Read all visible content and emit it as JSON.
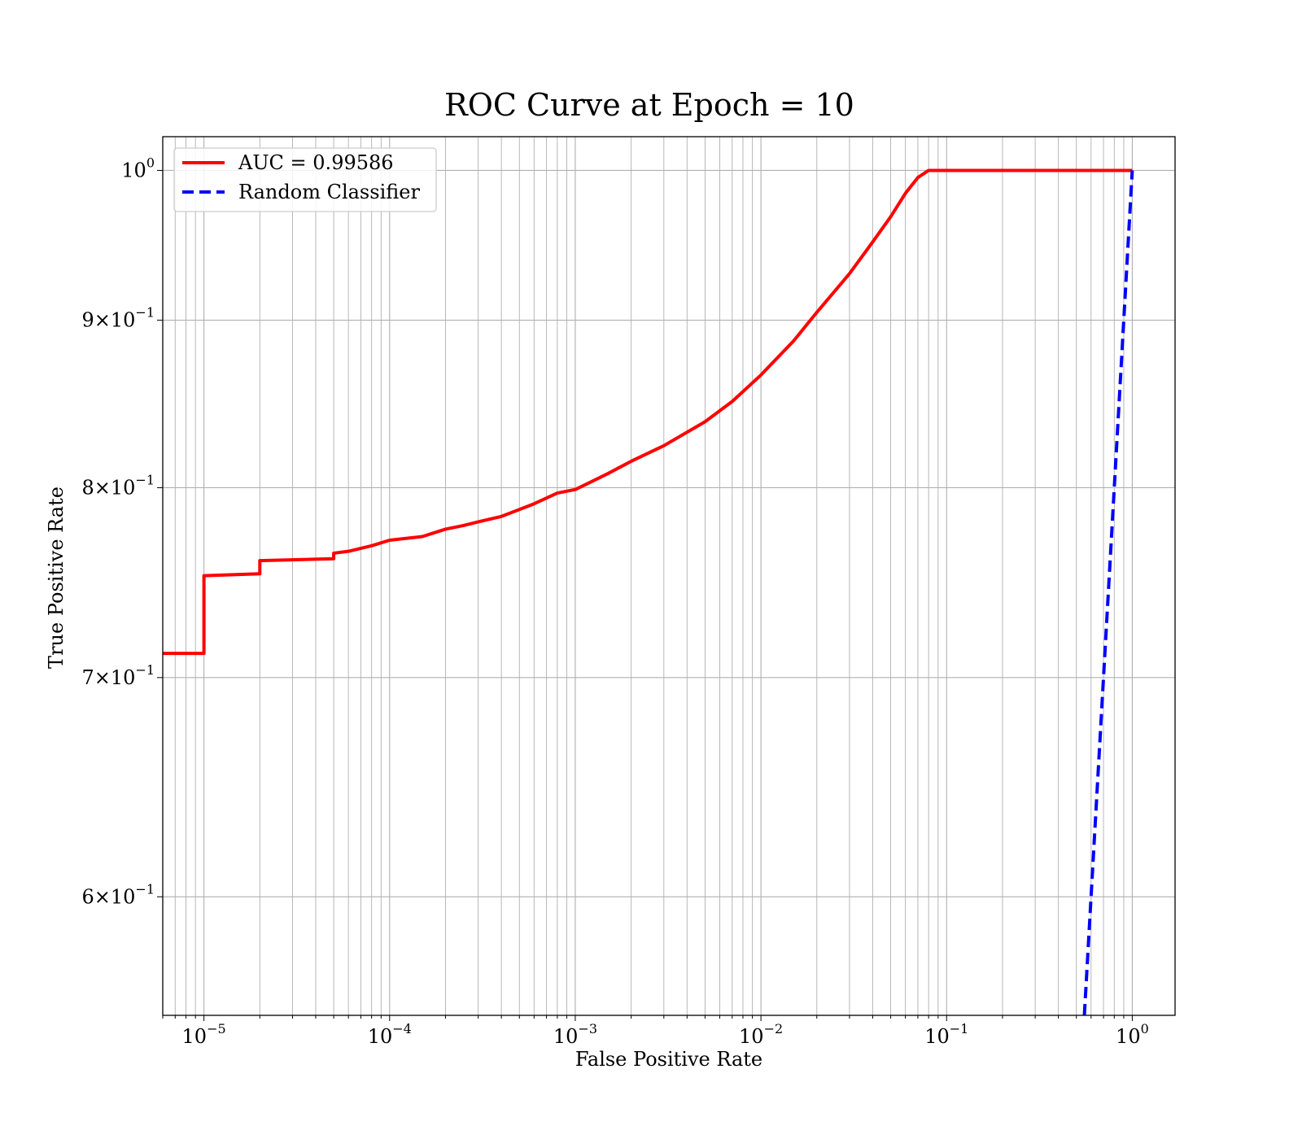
{
  "chart_data": {
    "type": "line",
    "title": "ROC Curve at Epoch = 10",
    "xlabel": "False Positive Rate",
    "ylabel": "True Positive Rate",
    "xscale": "log",
    "yscale": "log",
    "xlim": [
      6e-06,
      1.7
    ],
    "ylim": [
      0.552,
      1.024
    ],
    "grid": true,
    "grid_minor": true,
    "legend_position": "upper-left",
    "x_ticks": [
      {
        "value": 1e-05,
        "base": "10",
        "exp": "−5"
      },
      {
        "value": 0.0001,
        "base": "10",
        "exp": "−4"
      },
      {
        "value": 0.001,
        "base": "10",
        "exp": "−3"
      },
      {
        "value": 0.01,
        "base": "10",
        "exp": "−2"
      },
      {
        "value": 0.1,
        "base": "10",
        "exp": "−1"
      },
      {
        "value": 1,
        "base": "10",
        "exp": "0"
      }
    ],
    "y_ticks": [
      {
        "value": 1.0,
        "base": "10",
        "exp": "0"
      },
      {
        "value": 0.9,
        "base": "9×10",
        "exp": "−1"
      },
      {
        "value": 0.8,
        "base": "8×10",
        "exp": "−1"
      },
      {
        "value": 0.7,
        "base": "7×10",
        "exp": "−1"
      },
      {
        "value": 0.6,
        "base": "6×10",
        "exp": "−1"
      }
    ],
    "series": [
      {
        "name": "AUC = 0.99586",
        "color": "#ff0000",
        "style": "solid",
        "points": [
          [
            6e-06,
            0.712
          ],
          [
            1e-05,
            0.712
          ],
          [
            1e-05,
            0.752
          ],
          [
            2e-05,
            0.753
          ],
          [
            2e-05,
            0.76
          ],
          [
            5e-05,
            0.761
          ],
          [
            5e-05,
            0.764
          ],
          [
            6e-05,
            0.765
          ],
          [
            8e-05,
            0.768
          ],
          [
            0.0001,
            0.771
          ],
          [
            0.00015,
            0.773
          ],
          [
            0.0002,
            0.777
          ],
          [
            0.00025,
            0.779
          ],
          [
            0.0003,
            0.781
          ],
          [
            0.0004,
            0.784
          ],
          [
            0.0006,
            0.791
          ],
          [
            0.0008,
            0.797
          ],
          [
            0.001,
            0.799
          ],
          [
            0.0012,
            0.803
          ],
          [
            0.0015,
            0.808
          ],
          [
            0.002,
            0.815
          ],
          [
            0.003,
            0.824
          ],
          [
            0.005,
            0.838
          ],
          [
            0.007,
            0.85
          ],
          [
            0.01,
            0.866
          ],
          [
            0.015,
            0.887
          ],
          [
            0.02,
            0.905
          ],
          [
            0.03,
            0.93
          ],
          [
            0.04,
            0.951
          ],
          [
            0.05,
            0.968
          ],
          [
            0.06,
            0.984
          ],
          [
            0.07,
            0.995
          ],
          [
            0.08,
            1.0
          ],
          [
            1,
            1.0
          ]
        ]
      },
      {
        "name": "Random Classifier",
        "color": "#0000ff",
        "style": "dashed",
        "points": [
          [
            0.552,
            0.552
          ],
          [
            1.0,
            1.0
          ]
        ]
      }
    ]
  }
}
